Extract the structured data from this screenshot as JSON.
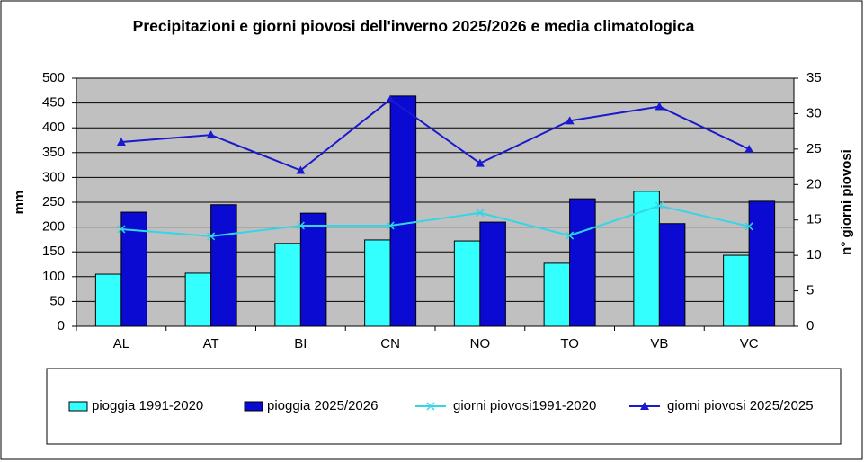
{
  "chart_data": {
    "type": "bar",
    "title": "Precipitazioni e giorni piovosi dell'inverno 2025/2026 e media climatologica",
    "y_label": "mm",
    "y2_label": "n° giorni piovosi",
    "categories": [
      "AL",
      "AT",
      "BI",
      "CN",
      "NO",
      "TO",
      "VB",
      "VC"
    ],
    "series": [
      {
        "name": "pioggia 1991-2020",
        "kind": "bar",
        "color": "#33ffff",
        "values": [
          105,
          107,
          167,
          174,
          172,
          127,
          272,
          143
        ]
      },
      {
        "name": "pioggia 2025/2026",
        "kind": "bar",
        "color": "#0a0ad2",
        "values": [
          230,
          245,
          228,
          464,
          210,
          257,
          207,
          252
        ]
      },
      {
        "name": "giorni piovosi1991-2020",
        "kind": "line",
        "marker": "x",
        "axis": "y2",
        "color": "#33d6e6",
        "values": [
          13.7,
          12.7,
          14.2,
          14.2,
          16,
          12.8,
          17,
          14.1
        ]
      },
      {
        "name": "giorni piovosi 2025/2025",
        "kind": "line",
        "marker": "triangle",
        "axis": "y2",
        "color": "#1a1acc",
        "values": [
          26,
          27,
          22,
          32,
          23,
          29,
          31,
          25
        ]
      }
    ],
    "ylim": [
      0,
      500
    ],
    "yticks": [
      0,
      50,
      100,
      150,
      200,
      250,
      300,
      350,
      400,
      450,
      500
    ],
    "y2lim": [
      0,
      35
    ],
    "y2ticks": [
      0,
      5,
      10,
      15,
      20,
      25,
      30,
      35
    ],
    "grid": true,
    "plot_background": "#c0c0c0",
    "legend": "bottom"
  }
}
